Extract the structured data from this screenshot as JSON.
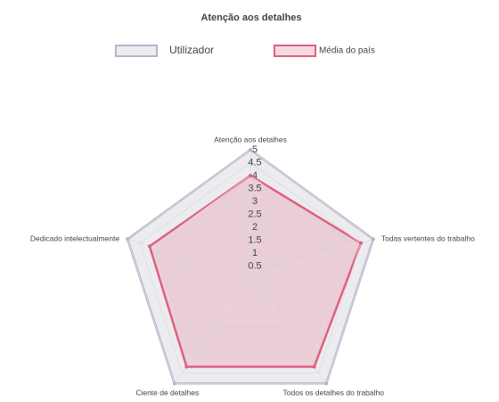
{
  "chart_data": {
    "type": "radar",
    "title": "Atenção aos detalhes",
    "categories": [
      "Atenção aos detalhes",
      "Todas vertentes do trabalho",
      "Todos os detalhes do trabalho",
      "Ciente de detalhes",
      "Dedicado intelectualmente"
    ],
    "series": [
      {
        "name": "Utilizador",
        "color": "#b5b5c8",
        "fill": "rgba(220,220,228,0.55)",
        "values": [
          5,
          5,
          5,
          5,
          5
        ]
      },
      {
        "name": "Média do país",
        "color": "#e0607e",
        "fill": "rgba(232,150,170,0.35)",
        "values": [
          4,
          4.5,
          4.2,
          4.2,
          4.1
        ]
      }
    ],
    "rlim": [
      0,
      5
    ],
    "rticks": [
      0.5,
      1,
      1.5,
      2,
      2.5,
      3,
      3.5,
      4,
      4.5,
      5
    ],
    "grid": true
  }
}
